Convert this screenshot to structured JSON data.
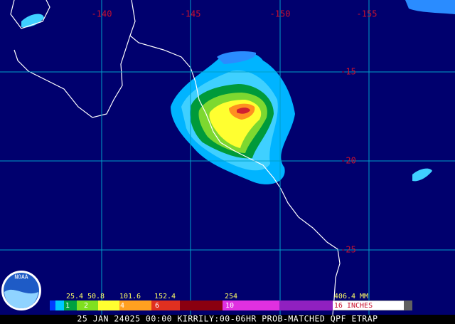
{
  "lon_labels": [
    "-140",
    "-145",
    "-150",
    "-155"
  ],
  "lat_labels": [
    "-15",
    "-20",
    "-25"
  ],
  "logo": "NOAA",
  "legend": {
    "mm_labels": [
      "25.4",
      "50.8",
      "101.6",
      "152.4",
      "254",
      "406.4 MM"
    ],
    "inch_labels": [
      "1",
      "2",
      "4",
      "6",
      "10",
      "16 INCHES"
    ]
  },
  "caption": "25 JAN 24025 00:00 KIRRILY:00-06HR PROB-MATCHED QPF ETRAP"
}
